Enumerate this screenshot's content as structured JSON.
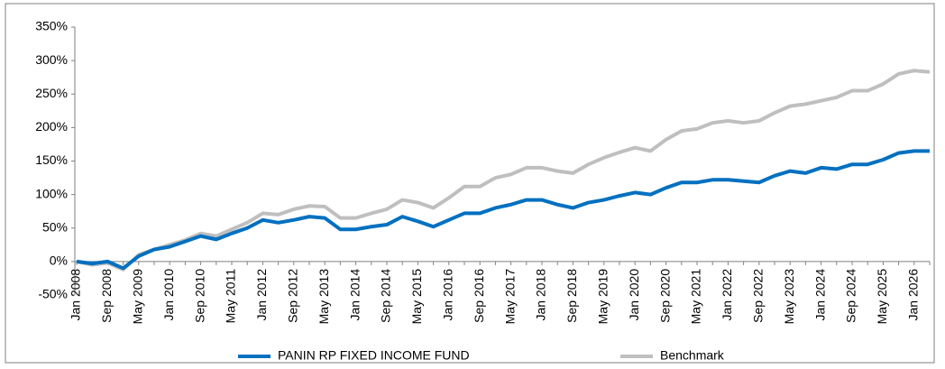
{
  "chart_data": {
    "type": "line",
    "categories": [
      "Jan 2008",
      null,
      "Sep 2008",
      null,
      "May 2009",
      null,
      "Jan 2010",
      null,
      "Sep 2010",
      null,
      "May 2011",
      null,
      "Jan 2012",
      null,
      "Sep 2012",
      null,
      "May 2013",
      null,
      "Jan 2014",
      null,
      "Sep 2014",
      null,
      "May 2015",
      null,
      "Jan 2016",
      null,
      "Sep 2016",
      null,
      "May 2017",
      null,
      "Jan 2018",
      null,
      "Sep 2018",
      null,
      "May 2019",
      null,
      "Jan 2020",
      null,
      "Sep 2020",
      null,
      "May 2021",
      null,
      "Jan 2022",
      null,
      "Sep 2022",
      null,
      "May 2023",
      null,
      "Jan 2024",
      null,
      "Sep 2024",
      null,
      "May 2025",
      null,
      "Jan 2026",
      null
    ],
    "series": [
      {
        "name": "PANIN RP FIXED INCOME FUND",
        "color": "#0070c0",
        "values": [
          0,
          -3,
          0,
          -10,
          8,
          18,
          22,
          30,
          38,
          33,
          42,
          50,
          62,
          58,
          62,
          67,
          65,
          48,
          48,
          52,
          55,
          67,
          60,
          52,
          62,
          72,
          72,
          80,
          85,
          92,
          92,
          85,
          80,
          88,
          92,
          98,
          103,
          100,
          110,
          118,
          118,
          122,
          122,
          120,
          118,
          128,
          135,
          132,
          140,
          138,
          145,
          145,
          152,
          162,
          165,
          165
        ]
      },
      {
        "name": "Benchmark",
        "color": "#bfbfbf",
        "values": [
          0,
          -5,
          -2,
          -12,
          10,
          18,
          25,
          32,
          42,
          38,
          48,
          58,
          72,
          70,
          78,
          83,
          82,
          65,
          65,
          72,
          78,
          92,
          88,
          80,
          95,
          112,
          112,
          125,
          130,
          140,
          140,
          135,
          132,
          145,
          155,
          163,
          170,
          165,
          182,
          195,
          198,
          207,
          210,
          207,
          210,
          222,
          232,
          235,
          240,
          245,
          255,
          255,
          265,
          280,
          285,
          283
        ]
      }
    ],
    "ylim": [
      -50,
      350
    ],
    "yticks": [
      {
        "value": -50,
        "label": "-50%"
      },
      {
        "value": 0,
        "label": "0%"
      },
      {
        "value": 50,
        "label": "50%"
      },
      {
        "value": 100,
        "label": "100%"
      },
      {
        "value": 150,
        "label": "150%"
      },
      {
        "value": 200,
        "label": "200%"
      },
      {
        "value": 250,
        "label": "250%"
      },
      {
        "value": 300,
        "label": "300%"
      },
      {
        "value": 350,
        "label": "350%"
      }
    ],
    "grid": false,
    "legend": "bottom"
  }
}
